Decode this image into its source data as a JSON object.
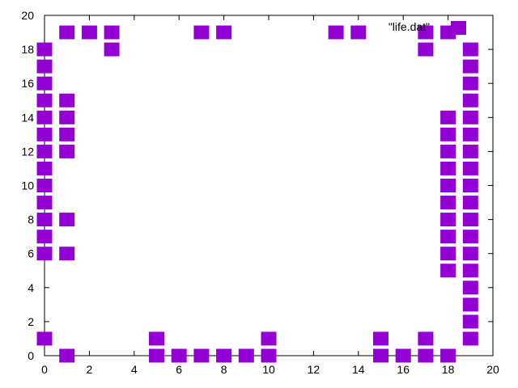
{
  "chart_data": {
    "type": "scatter",
    "title": "",
    "xlabel": "",
    "ylabel": "",
    "xlim": [
      0,
      20
    ],
    "ylim": [
      0,
      20
    ],
    "xticks": [
      0,
      2,
      4,
      6,
      8,
      10,
      12,
      14,
      16,
      18,
      20
    ],
    "yticks": [
      0,
      2,
      4,
      6,
      8,
      10,
      12,
      14,
      16,
      18,
      20
    ],
    "grid": false,
    "legend_position": "top-right",
    "marker": "filled-square",
    "series": [
      {
        "name": "\"life.dat\"",
        "color": "#9400D3",
        "points": [
          [
            0,
            1
          ],
          [
            0,
            6
          ],
          [
            0,
            7
          ],
          [
            0,
            8
          ],
          [
            0,
            9
          ],
          [
            0,
            10
          ],
          [
            0,
            11
          ],
          [
            0,
            12
          ],
          [
            0,
            13
          ],
          [
            0,
            14
          ],
          [
            0,
            15
          ],
          [
            0,
            16
          ],
          [
            0,
            17
          ],
          [
            0,
            18
          ],
          [
            1,
            0
          ],
          [
            1,
            6
          ],
          [
            1,
            8
          ],
          [
            1,
            12
          ],
          [
            1,
            13
          ],
          [
            1,
            14
          ],
          [
            1,
            15
          ],
          [
            1,
            19
          ],
          [
            2,
            19
          ],
          [
            3,
            18
          ],
          [
            3,
            19
          ],
          [
            5,
            0
          ],
          [
            5,
            1
          ],
          [
            6,
            0
          ],
          [
            7,
            0
          ],
          [
            7,
            19
          ],
          [
            8,
            0
          ],
          [
            8,
            19
          ],
          [
            9,
            0
          ],
          [
            10,
            0
          ],
          [
            10,
            1
          ],
          [
            13,
            19
          ],
          [
            14,
            19
          ],
          [
            15,
            0
          ],
          [
            15,
            1
          ],
          [
            16,
            0
          ],
          [
            17,
            0
          ],
          [
            17,
            1
          ],
          [
            17,
            18
          ],
          [
            17,
            19
          ],
          [
            18,
            0
          ],
          [
            18,
            5
          ],
          [
            18,
            6
          ],
          [
            18,
            7
          ],
          [
            18,
            8
          ],
          [
            18,
            9
          ],
          [
            18,
            10
          ],
          [
            18,
            11
          ],
          [
            18,
            12
          ],
          [
            18,
            13
          ],
          [
            18,
            14
          ],
          [
            18,
            19
          ],
          [
            19,
            1
          ],
          [
            19,
            2
          ],
          [
            19,
            3
          ],
          [
            19,
            4
          ],
          [
            19,
            5
          ],
          [
            19,
            6
          ],
          [
            19,
            7
          ],
          [
            19,
            8
          ],
          [
            19,
            9
          ],
          [
            19,
            10
          ],
          [
            19,
            11
          ],
          [
            19,
            12
          ],
          [
            19,
            13
          ],
          [
            19,
            14
          ],
          [
            19,
            15
          ],
          [
            19,
            16
          ],
          [
            19,
            17
          ],
          [
            19,
            18
          ]
        ]
      }
    ]
  }
}
